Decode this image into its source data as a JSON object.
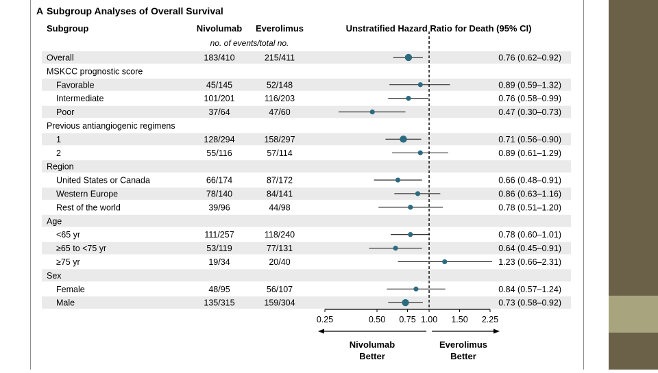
{
  "panel_label": "A",
  "title": "Subgroup Analyses of Overall Survival",
  "headers": {
    "subgroup": "Subgroup",
    "nivolumab": "Nivolumab",
    "everolimus": "Everolimus",
    "hr": "Unstratified Hazard Ratio for Death (95% CI)",
    "events_note": "no. of events/total no."
  },
  "rows": [
    {
      "label": "Overall",
      "indent": false,
      "shaded": true,
      "niv": "183/410",
      "eve": "215/411",
      "hr_text": "0.76 (0.62–0.92)",
      "hr": 0.76,
      "lo": 0.62,
      "hi": 0.92,
      "big": true
    },
    {
      "label": "MSKCC prognostic score",
      "indent": false,
      "shaded": false,
      "header": true
    },
    {
      "label": "Favorable",
      "indent": true,
      "shaded": true,
      "niv": "45/145",
      "eve": "52/148",
      "hr_text": "0.89 (0.59–1.32)",
      "hr": 0.89,
      "lo": 0.59,
      "hi": 1.32,
      "big": false
    },
    {
      "label": "Intermediate",
      "indent": true,
      "shaded": false,
      "niv": "101/201",
      "eve": "116/203",
      "hr_text": "0.76 (0.58–0.99)",
      "hr": 0.76,
      "lo": 0.58,
      "hi": 0.99,
      "big": false
    },
    {
      "label": "Poor",
      "indent": true,
      "shaded": true,
      "niv": "37/64",
      "eve": "47/60",
      "hr_text": "0.47 (0.30–0.73)",
      "hr": 0.47,
      "lo": 0.3,
      "hi": 0.73,
      "big": false
    },
    {
      "label": "Previous antiangiogenic regimens",
      "indent": false,
      "shaded": false,
      "header": true
    },
    {
      "label": "1",
      "indent": true,
      "shaded": true,
      "niv": "128/294",
      "eve": "158/297",
      "hr_text": "0.71 (0.56–0.90)",
      "hr": 0.71,
      "lo": 0.56,
      "hi": 0.9,
      "big": true
    },
    {
      "label": "2",
      "indent": true,
      "shaded": false,
      "niv": "55/116",
      "eve": "57/114",
      "hr_text": "0.89 (0.61–1.29)",
      "hr": 0.89,
      "lo": 0.61,
      "hi": 1.29,
      "big": false
    },
    {
      "label": "Region",
      "indent": false,
      "shaded": true,
      "header": true
    },
    {
      "label": "United States or Canada",
      "indent": true,
      "shaded": false,
      "niv": "66/174",
      "eve": "87/172",
      "hr_text": "0.66 (0.48–0.91)",
      "hr": 0.66,
      "lo": 0.48,
      "hi": 0.91,
      "big": false
    },
    {
      "label": "Western Europe",
      "indent": true,
      "shaded": true,
      "niv": "78/140",
      "eve": "84/141",
      "hr_text": "0.86 (0.63–1.16)",
      "hr": 0.86,
      "lo": 0.63,
      "hi": 1.16,
      "big": false
    },
    {
      "label": "Rest of the world",
      "indent": true,
      "shaded": false,
      "niv": "39/96",
      "eve": "44/98",
      "hr_text": "0.78 (0.51–1.20)",
      "hr": 0.78,
      "lo": 0.51,
      "hi": 1.2,
      "big": false
    },
    {
      "label": "Age",
      "indent": false,
      "shaded": true,
      "header": true
    },
    {
      "label": "<65 yr",
      "indent": true,
      "shaded": false,
      "niv": "111/257",
      "eve": "118/240",
      "hr_text": "0.78 (0.60–1.01)",
      "hr": 0.78,
      "lo": 0.6,
      "hi": 1.01,
      "big": false
    },
    {
      "label": "≥65 to <75 yr",
      "indent": true,
      "shaded": true,
      "niv": "53/119",
      "eve": "77/131",
      "hr_text": "0.64 (0.45–0.91)",
      "hr": 0.64,
      "lo": 0.45,
      "hi": 0.91,
      "big": false
    },
    {
      "label": "≥75 yr",
      "indent": true,
      "shaded": false,
      "niv": "19/34",
      "eve": "20/40",
      "hr_text": "1.23 (0.66–2.31)",
      "hr": 1.23,
      "lo": 0.66,
      "hi": 2.31,
      "big": false
    },
    {
      "label": "Sex",
      "indent": false,
      "shaded": true,
      "header": true
    },
    {
      "label": "Female",
      "indent": true,
      "shaded": false,
      "niv": "48/95",
      "eve": "56/107",
      "hr_text": "0.84 (0.57–1.24)",
      "hr": 0.84,
      "lo": 0.57,
      "hi": 1.24,
      "big": false
    },
    {
      "label": "Male",
      "indent": true,
      "shaded": true,
      "niv": "135/315",
      "eve": "159/304",
      "hr_text": "0.73 (0.58–0.92)",
      "hr": 0.73,
      "lo": 0.58,
      "hi": 0.92,
      "big": true
    }
  ],
  "chart_data": {
    "type": "scatter",
    "title": "Subgroup Analyses of Overall Survival",
    "xlabel": "Unstratified Hazard Ratio for Death (95% CI)",
    "x_scale": "log",
    "xlim": [
      0.25,
      2.25
    ],
    "reference_line": 1.0,
    "xticks": [
      0.25,
      0.5,
      0.75,
      1.0,
      1.5,
      2.25
    ],
    "xtick_labels": [
      "0.25",
      "0.50",
      "0.75",
      "1.00",
      "1.50",
      "2.25"
    ],
    "categories": [
      "Overall",
      "Favorable",
      "Intermediate",
      "Poor",
      "1",
      "2",
      "United States or Canada",
      "Western Europe",
      "Rest of the world",
      "<65 yr",
      "≥65 to <75 yr",
      "≥75 yr",
      "Female",
      "Male"
    ],
    "hr": [
      0.76,
      0.89,
      0.76,
      0.47,
      0.71,
      0.89,
      0.66,
      0.86,
      0.78,
      0.78,
      0.64,
      1.23,
      0.84,
      0.73
    ],
    "ci_low": [
      0.62,
      0.59,
      0.58,
      0.3,
      0.56,
      0.61,
      0.48,
      0.63,
      0.51,
      0.6,
      0.45,
      0.66,
      0.57,
      0.58
    ],
    "ci_high": [
      0.92,
      1.32,
      0.99,
      0.73,
      0.9,
      1.29,
      0.91,
      1.16,
      1.2,
      1.01,
      0.91,
      2.31,
      1.24,
      0.92
    ],
    "marker_color": "#2c6b7f",
    "left_arrow_label": [
      "Nivolumab",
      "Better"
    ],
    "right_arrow_label": [
      "Everolimus",
      "Better"
    ]
  }
}
